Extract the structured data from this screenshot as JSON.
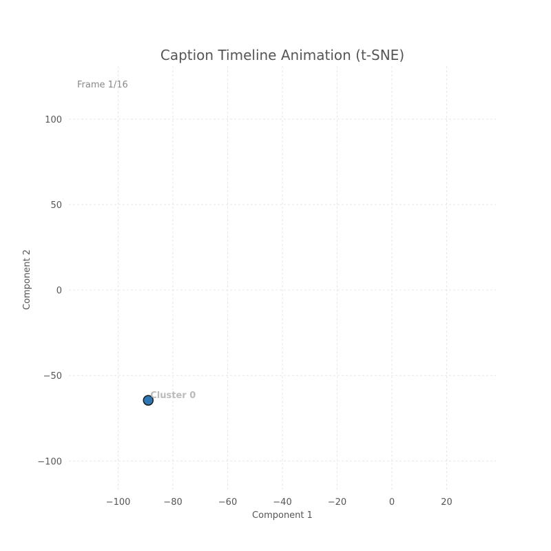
{
  "chart_data": {
    "type": "scatter",
    "title": "Caption Timeline Animation (t-SNE)",
    "frame_label": "Frame 1/16",
    "xlabel": "Component 1",
    "ylabel": "Component 2",
    "xlim": [
      -118,
      38
    ],
    "ylim": [
      -118,
      131
    ],
    "xticks": [
      -100,
      -80,
      -60,
      -40,
      -20,
      0,
      20
    ],
    "xtick_labels": [
      "−100",
      "−80",
      "−60",
      "−40",
      "−20",
      "0",
      "20"
    ],
    "yticks": [
      100,
      50,
      0,
      -50,
      -100
    ],
    "ytick_labels": [
      "100",
      "50",
      "0",
      "−50",
      "−100"
    ],
    "grid": true,
    "points": [
      {
        "label": "Cluster 0",
        "x": -89,
        "y": -64.5,
        "color": "#2f77b4"
      }
    ]
  }
}
